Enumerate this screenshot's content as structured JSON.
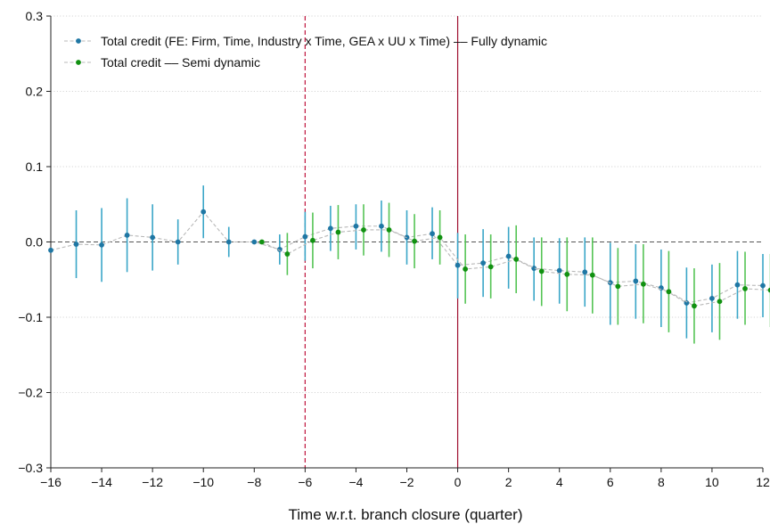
{
  "chart_data": {
    "type": "scatter",
    "title": "",
    "xlabel": "Time w.r.t. branch closure (quarter)",
    "ylabel": "",
    "xlim": [
      -16,
      12
    ],
    "ylim": [
      -0.3,
      0.3
    ],
    "x_ticks": [
      -16,
      -14,
      -12,
      -10,
      -8,
      -6,
      -4,
      -2,
      0,
      2,
      4,
      6,
      8,
      10,
      12
    ],
    "x_tick_labels": [
      "−16",
      "−14",
      "−12",
      "−10",
      "−8",
      "−6",
      "−4",
      "−2",
      "0",
      "2",
      "4",
      "6",
      "8",
      "10",
      "12"
    ],
    "y_ticks": [
      -0.3,
      -0.2,
      -0.1,
      0.0,
      0.1,
      0.2,
      0.3
    ],
    "y_tick_labels": [
      "−0.3",
      "−0.2",
      "−0.1",
      "0.0",
      "0.1",
      "0.2",
      "0.3"
    ],
    "grid": "horizontal dotted",
    "legend_position": "top-left",
    "reference_lines": {
      "zero_line": {
        "y": 0,
        "style": "dashed",
        "color": "#555555"
      },
      "vertical": [
        {
          "x": -6,
          "style": "dashed",
          "color": "#c0143c"
        },
        {
          "x": 0,
          "style": "solid",
          "color": "#a01030"
        }
      ]
    },
    "series": [
      {
        "name": "Total credit (FE: Firm, Time, Industry x Time, GEA x UU x Time) –– Fully dynamic",
        "color": "#1f77a4",
        "ci_color": "#3aa6c8",
        "x": [
          -16,
          -15,
          -14,
          -13,
          -12,
          -11,
          -10,
          -9,
          -8,
          -7,
          -6,
          -5,
          -4,
          -3,
          -2,
          -1,
          0,
          1,
          2,
          3,
          4,
          5,
          6,
          7,
          8,
          9,
          10,
          11,
          12
        ],
        "y": [
          -0.011,
          -0.003,
          -0.004,
          0.009,
          0.006,
          0.0,
          0.04,
          0.0,
          0.0,
          -0.01,
          0.007,
          0.018,
          0.021,
          0.021,
          0.006,
          0.011,
          -0.031,
          -0.028,
          -0.019,
          -0.035,
          -0.038,
          -0.04,
          -0.054,
          -0.052,
          -0.061,
          -0.081,
          -0.075,
          -0.057,
          -0.058
        ],
        "ci_low": [
          -0.011,
          -0.048,
          -0.053,
          -0.04,
          -0.038,
          -0.03,
          0.005,
          -0.02,
          0.0,
          -0.03,
          -0.025,
          -0.012,
          -0.01,
          -0.013,
          -0.03,
          -0.023,
          -0.075,
          -0.073,
          -0.062,
          -0.078,
          -0.082,
          -0.086,
          -0.11,
          -0.102,
          -0.113,
          -0.128,
          -0.12,
          -0.102,
          -0.1
        ],
        "ci_high": [
          -0.011,
          0.042,
          0.045,
          0.058,
          0.05,
          0.03,
          0.075,
          0.02,
          0.0,
          0.01,
          0.04,
          0.048,
          0.05,
          0.055,
          0.042,
          0.046,
          0.012,
          0.017,
          0.02,
          0.006,
          0.005,
          0.006,
          -0.001,
          -0.003,
          -0.01,
          -0.034,
          -0.03,
          -0.012,
          -0.016
        ]
      },
      {
        "name": "Total credit –– Semi dynamic",
        "color": "#119111",
        "ci_color": "#55c455",
        "x": [
          -7.7,
          -6.7,
          -5.7,
          -4.7,
          -3.7,
          -2.7,
          -1.7,
          -0.7,
          0.3,
          1.3,
          2.3,
          3.3,
          4.3,
          5.3,
          6.3,
          7.3,
          8.3,
          9.3,
          10.3,
          11.3,
          12.3
        ],
        "y": [
          0.0,
          -0.016,
          0.002,
          0.013,
          0.016,
          0.016,
          0.001,
          0.006,
          -0.036,
          -0.033,
          -0.023,
          -0.039,
          -0.043,
          -0.044,
          -0.059,
          -0.056,
          -0.066,
          -0.085,
          -0.079,
          -0.062,
          -0.064
        ],
        "ci_low": [
          0.0,
          -0.044,
          -0.035,
          -0.023,
          -0.018,
          -0.02,
          -0.035,
          -0.03,
          -0.082,
          -0.075,
          -0.068,
          -0.085,
          -0.092,
          -0.095,
          -0.11,
          -0.108,
          -0.12,
          -0.135,
          -0.13,
          -0.11,
          -0.113
        ],
        "ci_high": [
          0.0,
          0.012,
          0.039,
          0.049,
          0.05,
          0.052,
          0.037,
          0.042,
          0.01,
          0.01,
          0.022,
          0.006,
          0.006,
          0.006,
          -0.008,
          -0.003,
          -0.012,
          -0.035,
          -0.028,
          -0.013,
          -0.016
        ]
      }
    ]
  }
}
